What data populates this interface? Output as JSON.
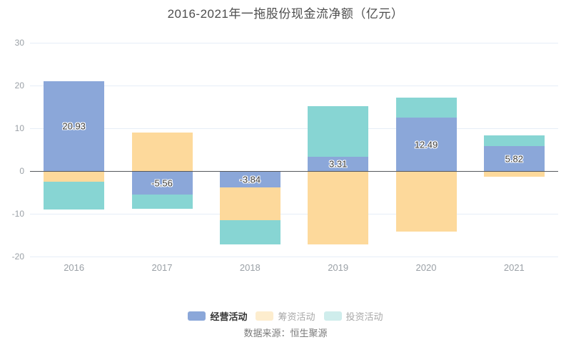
{
  "title": "2016-2021年一拖股份现金流净额（亿元）",
  "source": "数据来源：恒生聚源",
  "legend": [
    {
      "label": "经营活动",
      "swatch": "#8ba7d9",
      "text_color": "#333333",
      "active": true
    },
    {
      "label": "筹资活动",
      "swatch": "#fdedce",
      "text_color": "#a8a8a8",
      "active": false
    },
    {
      "label": "投资活动",
      "swatch": "#cfedec",
      "text_color": "#a8a8a8",
      "active": false
    }
  ],
  "colors": {
    "operating": "#8ba7d9",
    "financing": "#fdd99b",
    "investing": "#87d5d3",
    "gridline": "#e6edf7",
    "zero_line": "#55575c",
    "axis_text": "#9aa0a6",
    "title_text": "#4d4d4d",
    "value_label_text": "#3c3c3c"
  },
  "chart_data": {
    "type": "bar",
    "stacked": true,
    "title": "2016-2021年一拖股份现金流净额（亿元）",
    "categories": [
      "2016",
      "2017",
      "2018",
      "2019",
      "2020",
      "2021"
    ],
    "series": [
      {
        "name": "经营活动",
        "color": "#8ba7d9",
        "values": [
          20.93,
          -5.56,
          -3.84,
          3.31,
          12.49,
          5.82
        ],
        "labels": [
          "20.93",
          "-5.56",
          "-3.84",
          "3.31",
          "12.49",
          "5.82"
        ]
      },
      {
        "name": "筹资活动",
        "color": "#fdd99b",
        "values": [
          -2.5,
          9.0,
          -7.7,
          -17.1,
          -14.2,
          -1.4
        ]
      },
      {
        "name": "投资活动",
        "color": "#87d5d3",
        "values": [
          -6.5,
          -3.2,
          -5.6,
          11.9,
          4.7,
          2.5
        ]
      }
    ],
    "xlabel": "",
    "ylabel": "",
    "ylim": [
      -20,
      30
    ],
    "y_ticks": [
      30,
      20,
      10,
      0,
      -10,
      -20
    ],
    "grid": true,
    "legend_position": "bottom"
  }
}
